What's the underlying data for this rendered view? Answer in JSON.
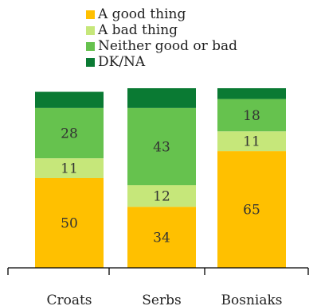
{
  "chart_data": {
    "type": "bar",
    "stacked": true,
    "categories": [
      "Croats",
      "Serbs",
      "Bosniaks"
    ],
    "series": [
      {
        "name": "A good thing",
        "color": "#FFC000",
        "values": [
          50,
          34,
          65
        ]
      },
      {
        "name": "A bad thing",
        "color": "#C6E77A",
        "values": [
          11,
          12,
          11
        ]
      },
      {
        "name": "Neither good or bad",
        "color": "#66C24E",
        "values": [
          28,
          43,
          18
        ]
      },
      {
        "name": "DK/NA",
        "color": "#0A7A33",
        "values": [
          9,
          11,
          6
        ]
      }
    ],
    "data_labels": [
      [
        "50",
        "34",
        "65"
      ],
      [
        "11",
        "12",
        "11"
      ],
      [
        "28",
        "43",
        "18"
      ],
      [
        "",
        "",
        ""
      ]
    ],
    "ylim": [
      0,
      100
    ],
    "legend_position": "top",
    "grid": false
  }
}
